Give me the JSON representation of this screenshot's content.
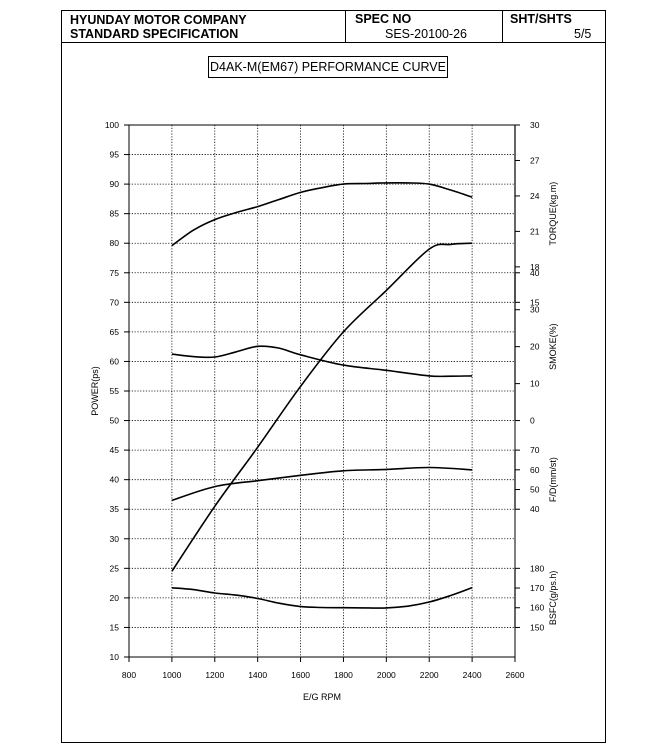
{
  "header": {
    "company": "HYUNDAY MOTOR COMPANY",
    "subtitle": "STANDARD SPECIFICATION",
    "spec_label": "SPEC NO",
    "spec_value": "SES-20100-26",
    "sheet_label": "SHT/SHTS",
    "sheet_value": "5/5"
  },
  "chart_data": {
    "type": "line",
    "title": "D4AK-M(EM67) PERFORMANCE CURVE",
    "xlabel": "E/G RPM",
    "x_ticks": [
      "800",
      "1000",
      "1200",
      "1400",
      "1600",
      "1800",
      "2000",
      "2200",
      "2400",
      "2600"
    ],
    "xlim": [
      800,
      2600
    ],
    "grid": true,
    "left_axis": {
      "label": "POWER(ps)",
      "ylim": [
        10,
        100
      ],
      "ticks": [
        "10",
        "15",
        "20",
        "25",
        "30",
        "35",
        "40",
        "45",
        "50",
        "55",
        "60",
        "65",
        "70",
        "75",
        "80",
        "85",
        "90",
        "95",
        "100"
      ]
    },
    "right_axes": [
      {
        "label": "TORQUE(kg.m)",
        "ticks": [
          "15",
          "18",
          "21",
          "24",
          "27",
          "30"
        ],
        "range": [
          15,
          30
        ]
      },
      {
        "label": "SMOKE(%)",
        "ticks": [
          "0",
          "10",
          "20",
          "30",
          "40"
        ],
        "range": [
          0,
          40
        ]
      },
      {
        "label": "F/D(mm/st)",
        "ticks": [
          "40",
          "50",
          "60",
          "70"
        ],
        "range": [
          40,
          70
        ]
      },
      {
        "label": "BSFC(g/ps.h)",
        "ticks": [
          "150",
          "160",
          "170",
          "180"
        ],
        "range": [
          150,
          180
        ]
      }
    ],
    "series": [
      {
        "key": "torque",
        "x": [
          1000,
          1100,
          1200,
          1300,
          1400,
          1500,
          1600,
          1700,
          1800,
          1900,
          2000,
          2100,
          2200,
          2300,
          2400
        ],
        "values": [
          19.8,
          21.1,
          22.0,
          22.6,
          23.1,
          23.7,
          24.3,
          24.7,
          25.0,
          25.05,
          25.1,
          25.1,
          25.0,
          24.5,
          23.9
        ]
      },
      {
        "key": "power",
        "x": [
          1000,
          1200,
          1400,
          1600,
          1800,
          2000,
          2200,
          2300,
          2400
        ],
        "values": [
          24.5,
          35.5,
          45.5,
          55.8,
          65.0,
          72.0,
          79.0,
          79.8,
          80.0
        ]
      },
      {
        "key": "smoke",
        "x": [
          1000,
          1100,
          1200,
          1300,
          1400,
          1500,
          1600,
          1800,
          2000,
          2200,
          2300,
          2400
        ],
        "values": [
          18.0,
          17.3,
          17.2,
          18.6,
          20.1,
          19.6,
          17.8,
          15.0,
          13.6,
          12.1,
          12.0,
          12.1
        ]
      },
      {
        "key": "fuel_delivery",
        "x": [
          1000,
          1200,
          1400,
          1600,
          1800,
          2000,
          2200,
          2400
        ],
        "values": [
          44.5,
          51.5,
          54.5,
          57.2,
          59.5,
          60.2,
          61.2,
          60.0
        ]
      },
      {
        "key": "bsfc",
        "x": [
          1000,
          1100,
          1200,
          1300,
          1400,
          1500,
          1600,
          1700,
          1800,
          1900,
          2000,
          2100,
          2200,
          2300,
          2400
        ],
        "values": [
          170.1,
          169.2,
          167.5,
          166.4,
          164.7,
          162.3,
          160.6,
          160.1,
          160.0,
          159.9,
          159.9,
          160.8,
          162.9,
          166.2,
          170.2
        ]
      }
    ]
  }
}
